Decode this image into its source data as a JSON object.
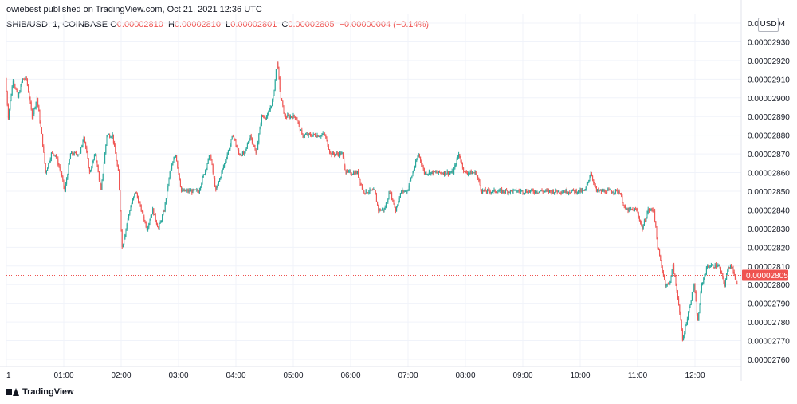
{
  "header": {
    "published": "owiebest published on TradingView.com, Oct 21, 2021 12:36 UTC"
  },
  "legend": {
    "symbol": "SHIB/USD, 1, COINBASE",
    "o_label": "O",
    "o_value": "0.00002810",
    "h_label": "H",
    "h_value": "0.00002810",
    "l_label": "L",
    "l_value": "0.00002801",
    "c_label": "C",
    "c_value": "0.00002805",
    "change": "−0.00000004 (−0.14%)"
  },
  "currency_badge": "USD",
  "footer": {
    "brand": "TradingView"
  },
  "colors": {
    "up": "#26a69a",
    "down": "#ef5350",
    "grid": "#f0f3fa",
    "axis_text": "#131722",
    "price_line": "#ef5350"
  },
  "chart_data": {
    "type": "candlestick",
    "title": "",
    "xlabel": "",
    "ylabel": "",
    "y_axis_labels": [
      "0.0000294",
      "0.00002930",
      "0.00002920",
      "0.00002910",
      "0.00002900",
      "0.00002890",
      "0.00002880",
      "0.00002870",
      "0.00002860",
      "0.00002850",
      "0.00002840",
      "0.00002830",
      "0.00002820",
      "0.00002810",
      "0.00002800",
      "0.00002790",
      "0.00002780",
      "0.00002770",
      "0.00002760"
    ],
    "y_axis_values": [
      2.94e-05,
      2.93e-05,
      2.92e-05,
      2.91e-05,
      2.9e-05,
      2.89e-05,
      2.88e-05,
      2.87e-05,
      2.86e-05,
      2.85e-05,
      2.84e-05,
      2.83e-05,
      2.82e-05,
      2.81e-05,
      2.8e-05,
      2.79e-05,
      2.78e-05,
      2.77e-05,
      2.76e-05
    ],
    "x_axis_labels": [
      "1",
      "01:00",
      "02:00",
      "03:00",
      "04:00",
      "05:00",
      "06:00",
      "07:00",
      "08:00",
      "09:00",
      "10:00",
      "11:00",
      "12:00"
    ],
    "x_axis_minutes": [
      0,
      60,
      120,
      180,
      240,
      300,
      360,
      420,
      480,
      540,
      600,
      660,
      720
    ],
    "ylim": [
      2.756e-05,
      2.942e-05
    ],
    "xlim_minutes": [
      0,
      768
    ],
    "current_price": 2.805e-05,
    "current_price_label": "0.00002805",
    "grid": true,
    "price_path": [
      [
        0,
        2.91e-05
      ],
      [
        3,
        2.89e-05
      ],
      [
        8,
        2.91e-05
      ],
      [
        13,
        2.9e-05
      ],
      [
        18,
        2.91e-05
      ],
      [
        22,
        2.91e-05
      ],
      [
        28,
        2.89e-05
      ],
      [
        33,
        2.9e-05
      ],
      [
        38,
        2.88e-05
      ],
      [
        42,
        2.86e-05
      ],
      [
        48,
        2.87e-05
      ],
      [
        52,
        2.87e-05
      ],
      [
        58,
        2.86e-05
      ],
      [
        62,
        2.85e-05
      ],
      [
        68,
        2.87e-05
      ],
      [
        72,
        2.87e-05
      ],
      [
        78,
        2.87e-05
      ],
      [
        82,
        2.88e-05
      ],
      [
        88,
        2.86e-05
      ],
      [
        94,
        2.87e-05
      ],
      [
        100,
        2.85e-05
      ],
      [
        106,
        2.88e-05
      ],
      [
        112,
        2.88e-05
      ],
      [
        118,
        2.86e-05
      ],
      [
        122,
        2.82e-05
      ],
      [
        126,
        2.83e-05
      ],
      [
        130,
        2.84e-05
      ],
      [
        136,
        2.85e-05
      ],
      [
        142,
        2.84e-05
      ],
      [
        148,
        2.83e-05
      ],
      [
        154,
        2.84e-05
      ],
      [
        160,
        2.83e-05
      ],
      [
        166,
        2.84e-05
      ],
      [
        172,
        2.86e-05
      ],
      [
        178,
        2.87e-05
      ],
      [
        184,
        2.85e-05
      ],
      [
        190,
        2.85e-05
      ],
      [
        196,
        2.85e-05
      ],
      [
        202,
        2.85e-05
      ],
      [
        208,
        2.86e-05
      ],
      [
        214,
        2.87e-05
      ],
      [
        220,
        2.85e-05
      ],
      [
        226,
        2.86e-05
      ],
      [
        232,
        2.87e-05
      ],
      [
        238,
        2.88e-05
      ],
      [
        244,
        2.87e-05
      ],
      [
        250,
        2.87e-05
      ],
      [
        256,
        2.88e-05
      ],
      [
        262,
        2.87e-05
      ],
      [
        268,
        2.89e-05
      ],
      [
        274,
        2.89e-05
      ],
      [
        280,
        2.9e-05
      ],
      [
        284,
        2.92e-05
      ],
      [
        288,
        2.9e-05
      ],
      [
        292,
        2.89e-05
      ],
      [
        298,
        2.89e-05
      ],
      [
        304,
        2.89e-05
      ],
      [
        310,
        2.88e-05
      ],
      [
        316,
        2.88e-05
      ],
      [
        322,
        2.88e-05
      ],
      [
        328,
        2.88e-05
      ],
      [
        334,
        2.88e-05
      ],
      [
        340,
        2.87e-05
      ],
      [
        346,
        2.87e-05
      ],
      [
        352,
        2.87e-05
      ],
      [
        356,
        2.86e-05
      ],
      [
        362,
        2.86e-05
      ],
      [
        368,
        2.86e-05
      ],
      [
        374,
        2.85e-05
      ],
      [
        380,
        2.85e-05
      ],
      [
        386,
        2.85e-05
      ],
      [
        390,
        2.84e-05
      ],
      [
        396,
        2.84e-05
      ],
      [
        402,
        2.85e-05
      ],
      [
        408,
        2.84e-05
      ],
      [
        414,
        2.85e-05
      ],
      [
        420,
        2.85e-05
      ],
      [
        426,
        2.86e-05
      ],
      [
        432,
        2.87e-05
      ],
      [
        438,
        2.86e-05
      ],
      [
        444,
        2.86e-05
      ],
      [
        450,
        2.86e-05
      ],
      [
        456,
        2.86e-05
      ],
      [
        462,
        2.86e-05
      ],
      [
        468,
        2.86e-05
      ],
      [
        474,
        2.87e-05
      ],
      [
        480,
        2.86e-05
      ],
      [
        486,
        2.86e-05
      ],
      [
        492,
        2.86e-05
      ],
      [
        498,
        2.85e-05
      ],
      [
        504,
        2.85e-05
      ],
      [
        510,
        2.85e-05
      ],
      [
        516,
        2.85e-05
      ],
      [
        522,
        2.85e-05
      ],
      [
        528,
        2.85e-05
      ],
      [
        534,
        2.85e-05
      ],
      [
        540,
        2.85e-05
      ],
      [
        546,
        2.85e-05
      ],
      [
        552,
        2.85e-05
      ],
      [
        558,
        2.85e-05
      ],
      [
        564,
        2.85e-05
      ],
      [
        570,
        2.85e-05
      ],
      [
        576,
        2.85e-05
      ],
      [
        582,
        2.85e-05
      ],
      [
        588,
        2.85e-05
      ],
      [
        594,
        2.85e-05
      ],
      [
        600,
        2.85e-05
      ],
      [
        606,
        2.85e-05
      ],
      [
        612,
        2.86e-05
      ],
      [
        618,
        2.85e-05
      ],
      [
        624,
        2.85e-05
      ],
      [
        630,
        2.85e-05
      ],
      [
        636,
        2.85e-05
      ],
      [
        642,
        2.85e-05
      ],
      [
        648,
        2.84e-05
      ],
      [
        654,
        2.84e-05
      ],
      [
        660,
        2.84e-05
      ],
      [
        666,
        2.83e-05
      ],
      [
        672,
        2.84e-05
      ],
      [
        678,
        2.84e-05
      ],
      [
        682,
        2.82e-05
      ],
      [
        686,
        2.81e-05
      ],
      [
        690,
        2.8e-05
      ],
      [
        694,
        2.8e-05
      ],
      [
        698,
        2.81e-05
      ],
      [
        704,
        2.79e-05
      ],
      [
        708,
        2.77e-05
      ],
      [
        712,
        2.78e-05
      ],
      [
        716,
        2.79e-05
      ],
      [
        720,
        2.8e-05
      ],
      [
        724,
        2.78e-05
      ],
      [
        728,
        2.8e-05
      ],
      [
        734,
        2.81e-05
      ],
      [
        740,
        2.81e-05
      ],
      [
        746,
        2.81e-05
      ],
      [
        752,
        2.8e-05
      ],
      [
        756,
        2.81e-05
      ],
      [
        760,
        2.81e-05
      ],
      [
        764,
        2.8e-05
      ]
    ]
  }
}
